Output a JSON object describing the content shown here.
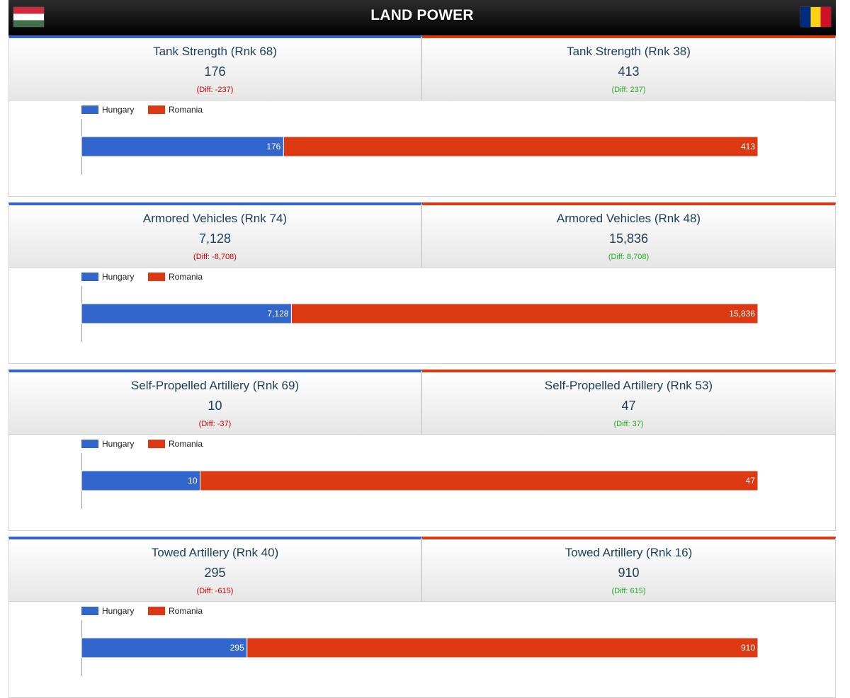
{
  "header": {
    "title": "LAND POWER",
    "left_flag": "hungary-flag",
    "right_flag": "romania-flag"
  },
  "colors": {
    "hungary": "#3366cc",
    "romania": "#dc3912"
  },
  "sections": [
    {
      "left": {
        "title": "Tank Strength (Rnk 68)",
        "value": "176",
        "diff": "(Diff: -237)"
      },
      "right": {
        "title": "Tank Strength (Rnk 38)",
        "value": "413",
        "diff": "(Diff: 237)"
      }
    },
    {
      "left": {
        "title": "Armored Vehicles (Rnk 74)",
        "value": "7,128",
        "diff": "(Diff: -8,708)"
      },
      "right": {
        "title": "Armored Vehicles (Rnk 48)",
        "value": "15,836",
        "diff": "(Diff: 8,708)"
      }
    },
    {
      "left": {
        "title": "Self-Propelled Artillery (Rnk 69)",
        "value": "10",
        "diff": "(Diff: -37)"
      },
      "right": {
        "title": "Self-Propelled Artillery (Rnk 53)",
        "value": "47",
        "diff": "(Diff: 37)"
      }
    },
    {
      "left": {
        "title": "Towed Artillery (Rnk 40)",
        "value": "295",
        "diff": "(Diff: -615)"
      },
      "right": {
        "title": "Towed Artillery (Rnk 16)",
        "value": "910",
        "diff": "(Diff: 615)"
      }
    }
  ],
  "chart_data": [
    {
      "type": "bar",
      "orientation": "horizontal",
      "stacked": true,
      "legend": "top-left",
      "series": [
        {
          "name": "Hungary",
          "values": [
            176
          ],
          "label": "176"
        },
        {
          "name": "Romania",
          "values": [
            413
          ],
          "label": "413"
        }
      ]
    },
    {
      "type": "bar",
      "orientation": "horizontal",
      "stacked": true,
      "legend": "top-left",
      "series": [
        {
          "name": "Hungary",
          "values": [
            7128
          ],
          "label": "7,128"
        },
        {
          "name": "Romania",
          "values": [
            15836
          ],
          "label": "15,836"
        }
      ]
    },
    {
      "type": "bar",
      "orientation": "horizontal",
      "stacked": true,
      "legend": "top-left",
      "series": [
        {
          "name": "Hungary",
          "values": [
            10
          ],
          "label": "10"
        },
        {
          "name": "Romania",
          "values": [
            47
          ],
          "label": "47"
        }
      ]
    },
    {
      "type": "bar",
      "orientation": "horizontal",
      "stacked": true,
      "legend": "top-left",
      "series": [
        {
          "name": "Hungary",
          "values": [
            295
          ],
          "label": "295"
        },
        {
          "name": "Romania",
          "values": [
            910
          ],
          "label": "910"
        }
      ]
    }
  ]
}
